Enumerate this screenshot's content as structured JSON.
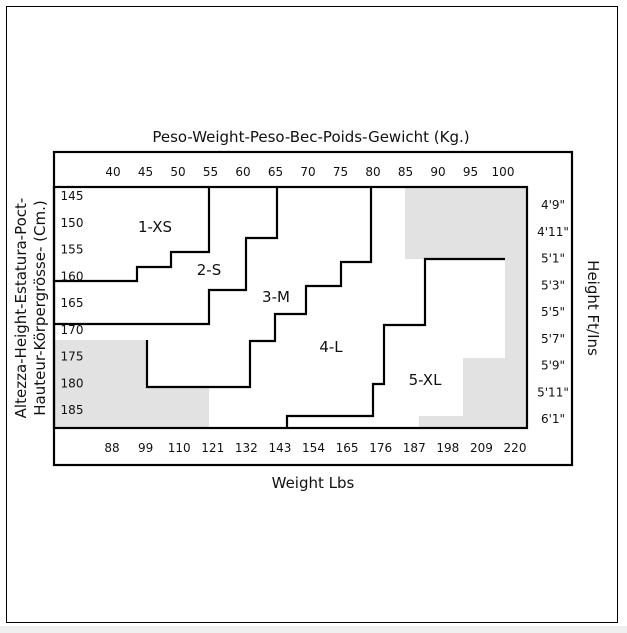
{
  "chart_data": {
    "type": "table",
    "title": "Peso-Weight-Peso-Bec-Poids-Gewicht (Kg.)",
    "xlabel": "Weight Lbs",
    "ylabel_line1": "Altezza-Height-Estatura-Poct-",
    "ylabel_line2": "Hauteur-Körpergrösse- (Cm.)",
    "ylabel_right": "Height Ft/Ins",
    "kg_ticks": [
      "40",
      "45",
      "50",
      "55",
      "60",
      "65",
      "70",
      "75",
      "80",
      "85",
      "90",
      "95",
      "100"
    ],
    "lbs_ticks": [
      "88",
      "99",
      "110",
      "121",
      "132",
      "143",
      "154",
      "165",
      "176",
      "187",
      "198",
      "209",
      "220"
    ],
    "cm_ticks": [
      "145",
      "150",
      "155",
      "160",
      "165",
      "170",
      "175",
      "180",
      "185"
    ],
    "ft_ticks": [
      "4'9\"",
      "4'11\"",
      "5'1\"",
      "5'3\"",
      "5'5\"",
      "5'7\"",
      "5'9\"",
      "5'11\"",
      "6'1\""
    ],
    "sizes": [
      {
        "label": "1-XS"
      },
      {
        "label": "2-S"
      },
      {
        "label": "3-M"
      },
      {
        "label": "4-L"
      },
      {
        "label": "5-XL"
      }
    ],
    "shade_color": "#e2e2e2"
  }
}
